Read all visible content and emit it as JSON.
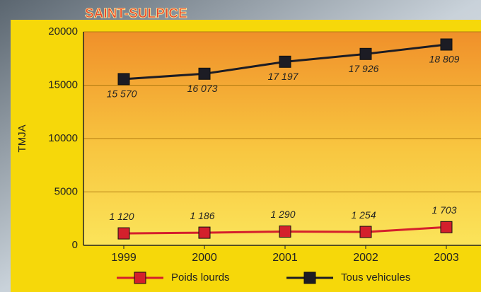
{
  "chart_data": {
    "type": "line",
    "title": "SAINT-SULPICE",
    "y_label": "TMJA",
    "categories": [
      "1999",
      "2000",
      "2001",
      "2002",
      "2003"
    ],
    "series": [
      {
        "name": "Poids lourds",
        "color": "#d4202c",
        "values": [
          1120,
          1186,
          1290,
          1254,
          1703
        ],
        "value_labels": [
          "1 120",
          "1 186",
          "1 290",
          "1 254",
          "1 703"
        ]
      },
      {
        "name": "Tous vehicules",
        "color": "#1c1c24",
        "values": [
          15570,
          16073,
          17197,
          17926,
          18809
        ],
        "value_labels": [
          "15 570",
          "16 073",
          "17 197",
          "17 926",
          "18 809"
        ]
      }
    ],
    "ylim": [
      0,
      20000
    ],
    "yticks": [
      0,
      5000,
      10000,
      15000,
      20000
    ],
    "grid": true
  }
}
